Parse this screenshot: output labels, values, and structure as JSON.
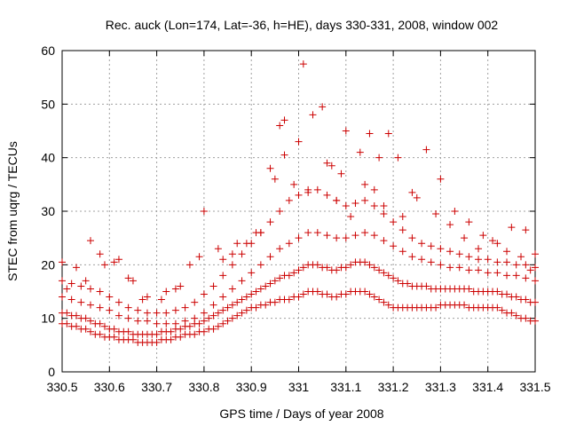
{
  "chart_data": {
    "type": "scatter",
    "title": "Rec. auck (Lon=174, Lat=-36, h=HE), days 330-331, 2008, window 002",
    "xlabel": "GPS time / Days of year 2008",
    "ylabel": "STEC from uqrg / TECUs",
    "xlim": [
      330.5,
      331.5
    ],
    "ylim": [
      0,
      60
    ],
    "xticks": [
      330.5,
      330.6,
      330.7,
      330.8,
      330.9,
      331,
      331.1,
      331.2,
      331.3,
      331.4,
      331.5
    ],
    "xtick_labels": [
      "330.5",
      "330.6",
      "330.7",
      "330.8",
      "330.9",
      "331",
      "331.1",
      "331.2",
      "331.3",
      "331.4",
      "331.5"
    ],
    "yticks": [
      0,
      10,
      20,
      30,
      40,
      50,
      60
    ],
    "ytick_labels": [
      "0",
      "10",
      "20",
      "30",
      "40",
      "50",
      "60"
    ],
    "grid": true,
    "marker": "plus",
    "color": "#cc0000",
    "series": [
      {
        "x": [
          330.5,
          330.51,
          330.52,
          330.53,
          330.54,
          330.55,
          330.56,
          330.57,
          330.58,
          330.59,
          330.6,
          330.61,
          330.62,
          330.63,
          330.64,
          330.65,
          330.66,
          330.67,
          330.68,
          330.69,
          330.7,
          330.71,
          330.72,
          330.73,
          330.74,
          330.75,
          330.76,
          330.77,
          330.78,
          330.79,
          330.8,
          330.81,
          330.82,
          330.83,
          330.84,
          330.85,
          330.86,
          330.87,
          330.88,
          330.89,
          330.9,
          330.91,
          330.92,
          330.93,
          330.94,
          330.95,
          330.96,
          330.97,
          330.98,
          330.99,
          331.0,
          331.01,
          331.02,
          331.03,
          331.04,
          331.05,
          331.06,
          331.07,
          331.08,
          331.09,
          331.1,
          331.11,
          331.12,
          331.13,
          331.14,
          331.15,
          331.16,
          331.17,
          331.18,
          331.19,
          331.2,
          331.21,
          331.22,
          331.23,
          331.24,
          331.25,
          331.26,
          331.27,
          331.28,
          331.29,
          331.3,
          331.31,
          331.32,
          331.33,
          331.34,
          331.35,
          331.36,
          331.37,
          331.38,
          331.39,
          331.4,
          331.41,
          331.42,
          331.43,
          331.44,
          331.45,
          331.46,
          331.47,
          331.48,
          331.49,
          331.5
        ],
        "y": [
          9,
          9,
          8.5,
          8.5,
          8,
          8,
          7.5,
          7,
          7,
          6.5,
          6.5,
          6.5,
          6,
          6,
          6,
          6,
          5.5,
          5.5,
          5.5,
          5.5,
          5.5,
          6,
          6,
          6,
          6.5,
          6.5,
          7,
          7,
          7,
          7.5,
          7.5,
          8,
          8,
          8.5,
          9,
          9.5,
          10,
          10.5,
          11,
          11.5,
          12,
          12,
          12.5,
          12.5,
          13,
          13,
          13.5,
          13.5,
          13.5,
          14,
          14,
          14.5,
          15,
          15,
          15,
          14.5,
          14.5,
          14,
          14,
          14.5,
          14.5,
          15,
          15,
          15,
          15,
          14.5,
          14,
          13.5,
          13,
          12.5,
          12,
          12,
          12,
          12,
          12,
          12,
          12,
          12,
          12,
          12,
          12.5,
          12.5,
          12.5,
          12.5,
          12.5,
          12.5,
          12,
          12,
          12,
          12,
          12,
          12,
          12,
          11.5,
          11,
          11,
          10.5,
          10,
          10,
          9.5,
          9.5
        ]
      },
      {
        "x": [
          330.5,
          330.51,
          330.52,
          330.53,
          330.54,
          330.55,
          330.56,
          330.57,
          330.58,
          330.59,
          330.6,
          330.61,
          330.62,
          330.63,
          330.64,
          330.65,
          330.66,
          330.67,
          330.68,
          330.69,
          330.7,
          330.71,
          330.72,
          330.73,
          330.74,
          330.75,
          330.76,
          330.77,
          330.78,
          330.79,
          330.8,
          330.81,
          330.82,
          330.83,
          330.84,
          330.85,
          330.86,
          330.87,
          330.88,
          330.89,
          330.9,
          330.91,
          330.92,
          330.93,
          330.94,
          330.95,
          330.96,
          330.97,
          330.98,
          330.99,
          331.0,
          331.01,
          331.02,
          331.03,
          331.04,
          331.05,
          331.06,
          331.07,
          331.08,
          331.09,
          331.1,
          331.11,
          331.12,
          331.13,
          331.14,
          331.15,
          331.16,
          331.17,
          331.18,
          331.19,
          331.2,
          331.21,
          331.22,
          331.23,
          331.24,
          331.25,
          331.26,
          331.27,
          331.28,
          331.29,
          331.3,
          331.31,
          331.32,
          331.33,
          331.34,
          331.35,
          331.36,
          331.37,
          331.38,
          331.39,
          331.4,
          331.41,
          331.42,
          331.43,
          331.44,
          331.45,
          331.46,
          331.47,
          331.48,
          331.49,
          331.5
        ],
        "y": [
          11,
          11,
          10.5,
          10.5,
          10,
          10,
          9.5,
          9,
          9,
          8.5,
          8,
          8,
          7.5,
          7.5,
          7.5,
          7,
          7,
          7,
          7,
          7,
          7,
          7.5,
          7.5,
          7.5,
          8,
          8,
          8.5,
          8.5,
          9,
          9,
          9.5,
          10,
          10.5,
          11,
          11.5,
          12,
          12.5,
          13,
          13.5,
          14,
          14.5,
          15,
          15.5,
          16,
          16.5,
          17,
          17.5,
          18,
          18,
          18.5,
          19,
          19.5,
          20,
          20,
          20,
          19.5,
          19.5,
          19,
          19,
          19.5,
          19.5,
          20,
          20.5,
          20.5,
          20.5,
          20,
          19.5,
          19,
          18.5,
          18,
          17.5,
          17,
          16.5,
          16.5,
          16,
          16,
          16,
          16,
          15.5,
          15.5,
          15.5,
          15.5,
          15.5,
          15.5,
          15.5,
          15.5,
          15.5,
          15,
          15,
          15,
          15,
          15,
          15,
          14.5,
          14.5,
          14,
          14,
          13.5,
          13.5,
          13,
          13
        ]
      },
      {
        "x": [
          330.5,
          330.52,
          330.54,
          330.56,
          330.58,
          330.6,
          330.62,
          330.64,
          330.66,
          330.68,
          330.7,
          330.72,
          330.74,
          330.76,
          330.78,
          330.8,
          330.82,
          330.84,
          330.86,
          330.88,
          330.9,
          330.92,
          330.94,
          330.96,
          330.98,
          331.0,
          331.02,
          331.04,
          331.06,
          331.08,
          331.1,
          331.12,
          331.14,
          331.16,
          331.18,
          331.2,
          331.22,
          331.24,
          331.26,
          331.28,
          331.3,
          331.32,
          331.34,
          331.36,
          331.38,
          331.4,
          331.42,
          331.44,
          331.46,
          331.48,
          331.5
        ],
        "y": [
          14,
          13.5,
          13,
          12.5,
          12,
          11.5,
          10.5,
          10,
          9.5,
          9.5,
          9,
          9,
          9,
          9.5,
          10,
          11,
          12.5,
          14,
          15.5,
          17,
          18.5,
          20,
          21.5,
          23,
          24,
          25,
          26,
          26,
          25.5,
          25,
          25,
          25.5,
          26,
          25.5,
          24.5,
          23.5,
          22.5,
          21.5,
          21,
          20.5,
          20,
          19.5,
          19.5,
          19,
          19,
          18.5,
          18.5,
          18,
          18,
          17.5,
          17
        ]
      },
      {
        "x": [
          330.5,
          330.52,
          330.54,
          330.56,
          330.58,
          330.6,
          330.62,
          330.64,
          330.66,
          330.68,
          330.7,
          330.72,
          330.74,
          330.76,
          330.78,
          330.8,
          330.82,
          330.84,
          330.86,
          330.88,
          330.9,
          330.92,
          330.94,
          330.96,
          330.98,
          331.0,
          331.02,
          331.04,
          331.06,
          331.08,
          331.1,
          331.12,
          331.14,
          331.16,
          331.18,
          331.2,
          331.22,
          331.24,
          331.26,
          331.28,
          331.3,
          331.32,
          331.34,
          331.36,
          331.38,
          331.4,
          331.42,
          331.44,
          331.46,
          331.48,
          331.5
        ],
        "y": [
          17,
          16.5,
          16,
          15.5,
          15,
          14,
          13,
          12,
          11.5,
          11,
          11,
          11,
          11.5,
          12,
          13,
          14.5,
          16,
          18,
          20,
          22,
          24,
          26,
          28,
          30,
          32,
          33,
          34,
          34,
          33,
          32,
          31,
          31.5,
          32,
          31,
          29.5,
          28,
          26.5,
          25,
          24,
          23.5,
          23,
          22.5,
          22,
          21.5,
          21,
          21,
          20.5,
          20.5,
          20,
          20,
          19.5
        ]
      },
      {
        "x": [
          330.5,
          330.53,
          330.56,
          330.59,
          330.62,
          330.65,
          330.68,
          330.71,
          330.74,
          330.77,
          330.8,
          330.83,
          330.86,
          330.89,
          330.92,
          330.95,
          330.96,
          330.97,
          331.0,
          331.01,
          331.03,
          331.05,
          331.07,
          331.09,
          331.1,
          331.13,
          331.15,
          331.17,
          331.19,
          331.21,
          331.24,
          331.27,
          331.3,
          331.33,
          331.36,
          331.39,
          331.42,
          331.45,
          331.48,
          331.5
        ],
        "y": [
          20.5,
          19.5,
          24.5,
          20,
          21,
          17,
          14,
          13.5,
          15.5,
          20,
          30,
          23,
          22,
          24,
          26,
          36,
          46,
          47,
          43,
          57.5,
          48,
          49.5,
          38.5,
          37,
          45,
          41,
          44.5,
          40,
          44.5,
          40,
          33.5,
          41.5,
          36,
          30,
          28,
          25.5,
          24,
          27,
          26.5,
          22
        ]
      },
      {
        "x": [
          330.51,
          330.55,
          330.58,
          330.61,
          330.64,
          330.67,
          330.72,
          330.75,
          330.79,
          330.84,
          330.87,
          330.91,
          330.94,
          330.97,
          330.99,
          331.02,
          331.06,
          331.08,
          331.11,
          331.14,
          331.16,
          331.18,
          331.22,
          331.25,
          331.29,
          331.32,
          331.35,
          331.38,
          331.41,
          331.44,
          331.47,
          331.49
        ],
        "y": [
          15.5,
          17,
          22,
          20.5,
          17.5,
          13.5,
          15,
          16,
          21.5,
          21,
          24,
          26,
          38,
          40.5,
          35,
          33.5,
          39,
          32,
          29,
          35,
          34,
          31,
          29,
          32.5,
          29.5,
          27.5,
          25,
          23,
          24.5,
          22.5,
          21.5,
          19
        ]
      }
    ]
  }
}
